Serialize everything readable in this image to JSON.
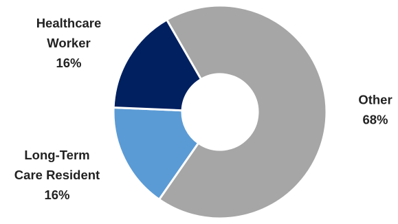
{
  "chart_data": {
    "type": "pie",
    "donut": true,
    "legend": "none",
    "slices": [
      {
        "label_lines": [
          "Other"
        ],
        "value": 68,
        "value_label": "68%",
        "color": "#A6A6A6"
      },
      {
        "label_lines": [
          "Long-Term",
          "Care Resident"
        ],
        "value": 16,
        "value_label": "16%",
        "color": "#5B9BD5"
      },
      {
        "label_lines": [
          "Healthcare",
          "Worker"
        ],
        "value": 16,
        "value_label": "16%",
        "color": "#002060"
      }
    ]
  }
}
